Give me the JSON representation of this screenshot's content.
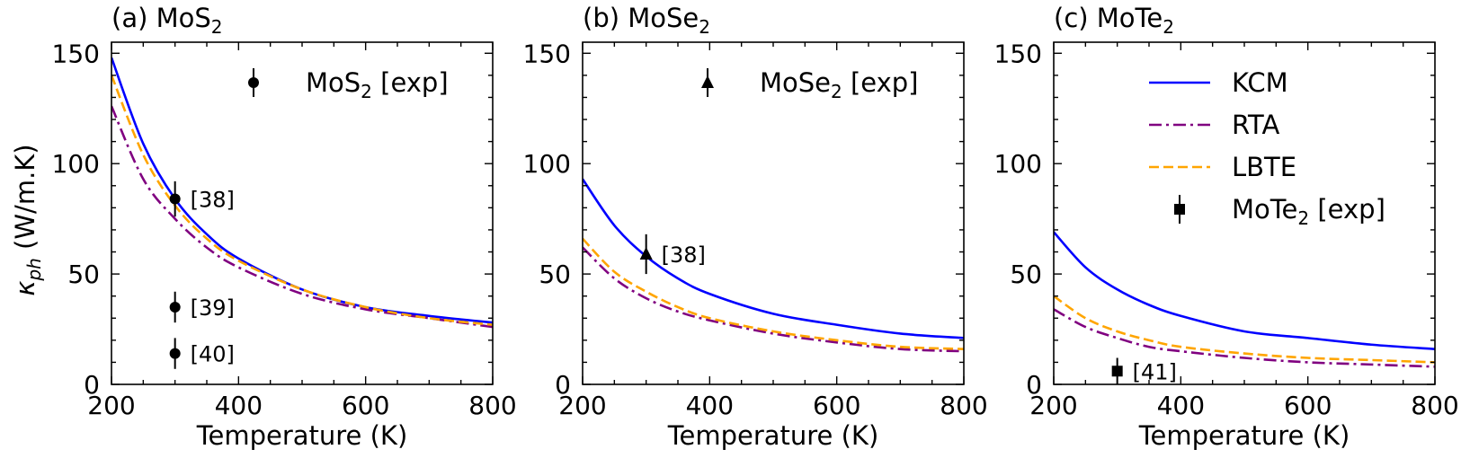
{
  "figure": {
    "ylabel_main": "κ",
    "ylabel_sub": "ph",
    "ylabel_unit": " (W/m.K)"
  },
  "chart_data": [
    {
      "type": "line",
      "title_prefix": "(a) MoS",
      "title_sub": "2",
      "xlabel": "Temperature (K)",
      "ylabel": "κph (W/m.K)",
      "xlim": [
        200,
        800
      ],
      "ylim": [
        0,
        155
      ],
      "xticks": [
        200,
        400,
        600,
        800
      ],
      "yticks": [
        0,
        50,
        100,
        150
      ],
      "series": [
        {
          "name": "KCM",
          "color": "#0000ff",
          "style": "solid",
          "x": [
            200,
            250,
            300,
            350,
            400,
            500,
            600,
            700,
            800
          ],
          "y": [
            148,
            109,
            84,
            68,
            57,
            43,
            35,
            31,
            28
          ]
        },
        {
          "name": "RTA",
          "color": "#800080",
          "style": "dashdot",
          "x": [
            200,
            250,
            300,
            350,
            400,
            500,
            600,
            700,
            800
          ],
          "y": [
            126,
            93,
            75,
            62,
            53,
            41,
            34,
            30,
            26
          ]
        },
        {
          "name": "LBTE",
          "color": "#ffa500",
          "style": "dashed",
          "x": [
            200,
            250,
            300,
            350,
            400,
            500,
            600,
            700,
            800
          ],
          "y": [
            140,
            104,
            81,
            66,
            56,
            43,
            35,
            30,
            27
          ]
        }
      ],
      "experiments": [
        {
          "x": 300,
          "y": 84,
          "err": 8,
          "label": "[38]"
        },
        {
          "x": 300,
          "y": 35,
          "err": 7,
          "label": "[39]"
        },
        {
          "x": 300,
          "y": 14,
          "err": 7,
          "label": "[40]"
        }
      ],
      "marker": "circle",
      "legend": {
        "entries": [
          {
            "prefix": "MoS",
            "sub": "2",
            "suffix": " [exp]",
            "kind": "marker"
          }
        ]
      }
    },
    {
      "type": "line",
      "title_prefix": "(b) MoSe",
      "title_sub": "2",
      "xlabel": "Temperature (K)",
      "ylabel": "",
      "xlim": [
        200,
        800
      ],
      "ylim": [
        0,
        155
      ],
      "xticks": [
        200,
        400,
        600,
        800
      ],
      "yticks": [
        0,
        50,
        100,
        150
      ],
      "series": [
        {
          "name": "KCM",
          "color": "#0000ff",
          "style": "solid",
          "x": [
            200,
            250,
            300,
            350,
            400,
            500,
            600,
            700,
            800
          ],
          "y": [
            93,
            72,
            58,
            48,
            41,
            32,
            27,
            23,
            21
          ]
        },
        {
          "name": "RTA",
          "color": "#800080",
          "style": "dashdot",
          "x": [
            200,
            250,
            300,
            350,
            400,
            500,
            600,
            700,
            800
          ],
          "y": [
            62,
            48,
            39,
            33,
            29,
            23,
            19,
            16,
            15
          ]
        },
        {
          "name": "LBTE",
          "color": "#ffa500",
          "style": "dashed",
          "x": [
            200,
            250,
            300,
            350,
            400,
            500,
            600,
            700,
            800
          ],
          "y": [
            66,
            51,
            42,
            35,
            30,
            24,
            20,
            17,
            16
          ]
        }
      ],
      "experiments": [
        {
          "x": 300,
          "y": 59,
          "err": 9,
          "label": "[38]"
        }
      ],
      "marker": "triangle",
      "legend": {
        "entries": [
          {
            "prefix": "MoSe",
            "sub": "2",
            "suffix": " [exp]",
            "kind": "marker"
          }
        ]
      }
    },
    {
      "type": "line",
      "title_prefix": "(c) MoTe",
      "title_sub": "2",
      "xlabel": "Temperature (K)",
      "ylabel": "",
      "xlim": [
        200,
        800
      ],
      "ylim": [
        0,
        155
      ],
      "xticks": [
        200,
        400,
        600,
        800
      ],
      "yticks": [
        0,
        50,
        100,
        150
      ],
      "series": [
        {
          "name": "KCM",
          "color": "#0000ff",
          "style": "solid",
          "x": [
            200,
            250,
            300,
            350,
            400,
            500,
            600,
            700,
            800
          ],
          "y": [
            69,
            53,
            43,
            36,
            31,
            24,
            21,
            18,
            16
          ]
        },
        {
          "name": "RTA",
          "color": "#800080",
          "style": "dashdot",
          "x": [
            200,
            250,
            300,
            350,
            400,
            500,
            600,
            700,
            800
          ],
          "y": [
            34,
            26,
            21,
            17,
            15,
            12,
            10,
            9,
            8
          ]
        },
        {
          "name": "LBTE",
          "color": "#ffa500",
          "style": "dashed",
          "x": [
            200,
            250,
            300,
            350,
            400,
            500,
            600,
            700,
            800
          ],
          "y": [
            40,
            30,
            24,
            20,
            17,
            14,
            12,
            11,
            10
          ]
        }
      ],
      "experiments": [
        {
          "x": 300,
          "y": 6,
          "err": 6,
          "label": "[41]"
        }
      ],
      "marker": "square",
      "legend": {
        "entries": [
          {
            "prefix": "KCM",
            "sub": "",
            "suffix": "",
            "kind": "line",
            "series": 0
          },
          {
            "prefix": "RTA",
            "sub": "",
            "suffix": "",
            "kind": "line",
            "series": 1
          },
          {
            "prefix": "LBTE",
            "sub": "",
            "suffix": "",
            "kind": "line",
            "series": 2
          },
          {
            "prefix": "MoTe",
            "sub": "2",
            "suffix": " [exp]",
            "kind": "marker"
          }
        ]
      }
    }
  ]
}
